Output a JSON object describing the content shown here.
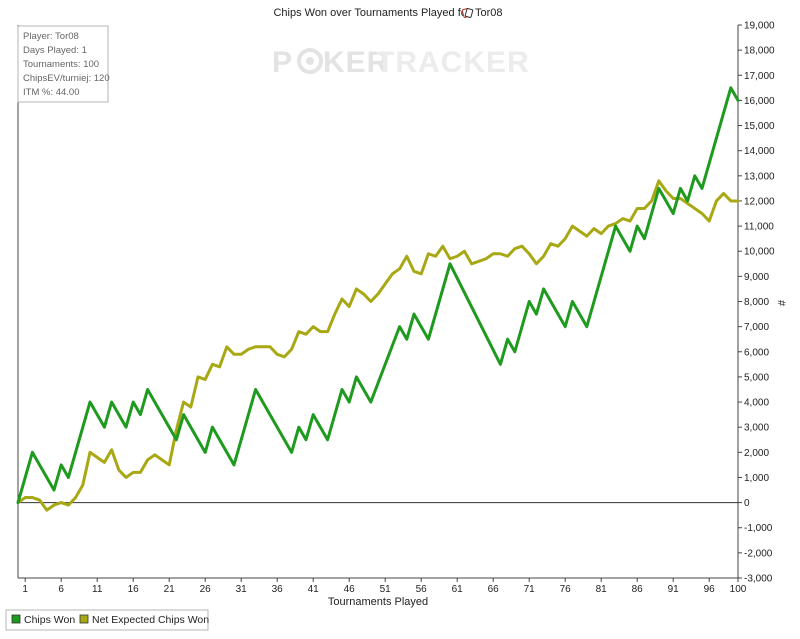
{
  "chart_data": {
    "type": "line",
    "title": "Chips Won over Tournaments Played for",
    "title_player": "Tor08",
    "xlabel": "Tournaments Played",
    "ylabel": "#",
    "xlim": [
      0,
      100
    ],
    "ylim": [
      -3000,
      19000
    ],
    "x_ticks": [
      1,
      6,
      11,
      16,
      21,
      26,
      31,
      36,
      41,
      46,
      51,
      56,
      61,
      66,
      71,
      76,
      81,
      86,
      91,
      96,
      100
    ],
    "y_ticks": [
      -3000,
      -2000,
      -1000,
      0,
      1000,
      2000,
      3000,
      4000,
      5000,
      6000,
      7000,
      8000,
      9000,
      10000,
      11000,
      12000,
      13000,
      14000,
      15000,
      16000,
      17000,
      18000,
      19000
    ],
    "y_tick_labels": [
      "-3,000",
      "-2,000",
      "-1,000",
      "0",
      "1,000",
      "2,000",
      "3,000",
      "4,000",
      "5,000",
      "6,000",
      "7,000",
      "8,000",
      "9,000",
      "10,000",
      "11,000",
      "12,000",
      "13,000",
      "14,000",
      "15,000",
      "16,000",
      "17,000",
      "18,000",
      "19,000"
    ],
    "grid": false,
    "legend": "bottom-left",
    "series": [
      {
        "name": "Chips Won",
        "color": "#1e9a1e",
        "points": [
          [
            0,
            0
          ],
          [
            2,
            2000
          ],
          [
            5,
            500
          ],
          [
            6,
            1500
          ],
          [
            7,
            1000
          ],
          [
            10,
            4000
          ],
          [
            12,
            3000
          ],
          [
            13,
            4000
          ],
          [
            15,
            3000
          ],
          [
            16,
            4000
          ],
          [
            17,
            3500
          ],
          [
            18,
            4500
          ],
          [
            22,
            2500
          ],
          [
            23,
            3500
          ],
          [
            26,
            2000
          ],
          [
            27,
            3000
          ],
          [
            30,
            1500
          ],
          [
            33,
            4500
          ],
          [
            38,
            2000
          ],
          [
            39,
            3000
          ],
          [
            40,
            2500
          ],
          [
            41,
            3500
          ],
          [
            43,
            2500
          ],
          [
            45,
            4500
          ],
          [
            46,
            4000
          ],
          [
            47,
            5000
          ],
          [
            49,
            4000
          ],
          [
            53,
            7000
          ],
          [
            54,
            6500
          ],
          [
            55,
            7500
          ],
          [
            57,
            6500
          ],
          [
            60,
            9500
          ],
          [
            67,
            5500
          ],
          [
            68,
            6500
          ],
          [
            69,
            6000
          ],
          [
            71,
            8000
          ],
          [
            72,
            7500
          ],
          [
            73,
            8500
          ],
          [
            76,
            7000
          ],
          [
            77,
            8000
          ],
          [
            79,
            7000
          ],
          [
            83,
            11000
          ],
          [
            85,
            10000
          ],
          [
            86,
            11000
          ],
          [
            87,
            10500
          ],
          [
            89,
            12500
          ],
          [
            91,
            11500
          ],
          [
            92,
            12500
          ],
          [
            93,
            12000
          ],
          [
            94,
            13000
          ],
          [
            95,
            12500
          ],
          [
            99,
            16500
          ],
          [
            100,
            16000
          ]
        ]
      },
      {
        "name": "Net Expected Chips Won",
        "color": "#a8a814",
        "points": [
          [
            0,
            0
          ],
          [
            1,
            200
          ],
          [
            2,
            200
          ],
          [
            3,
            100
          ],
          [
            4,
            -300
          ],
          [
            5,
            -100
          ],
          [
            6,
            0
          ],
          [
            7,
            -100
          ],
          [
            8,
            200
          ],
          [
            9,
            700
          ],
          [
            10,
            2000
          ],
          [
            11,
            1800
          ],
          [
            12,
            1600
          ],
          [
            13,
            2100
          ],
          [
            14,
            1300
          ],
          [
            15,
            1000
          ],
          [
            16,
            1200
          ],
          [
            17,
            1200
          ],
          [
            18,
            1700
          ],
          [
            19,
            1900
          ],
          [
            20,
            1700
          ],
          [
            21,
            1500
          ],
          [
            22,
            2900
          ],
          [
            23,
            4000
          ],
          [
            24,
            3800
          ],
          [
            25,
            5000
          ],
          [
            26,
            4900
          ],
          [
            27,
            5500
          ],
          [
            28,
            5400
          ],
          [
            29,
            6200
          ],
          [
            30,
            5900
          ],
          [
            31,
            5900
          ],
          [
            32,
            6100
          ],
          [
            33,
            6200
          ],
          [
            34,
            6200
          ],
          [
            35,
            6200
          ],
          [
            36,
            5900
          ],
          [
            37,
            5800
          ],
          [
            38,
            6100
          ],
          [
            39,
            6800
          ],
          [
            40,
            6700
          ],
          [
            41,
            7000
          ],
          [
            42,
            6800
          ],
          [
            43,
            6800
          ],
          [
            44,
            7500
          ],
          [
            45,
            8100
          ],
          [
            46,
            7800
          ],
          [
            47,
            8500
          ],
          [
            48,
            8300
          ],
          [
            49,
            8000
          ],
          [
            50,
            8300
          ],
          [
            51,
            8700
          ],
          [
            52,
            9100
          ],
          [
            53,
            9300
          ],
          [
            54,
            9800
          ],
          [
            55,
            9200
          ],
          [
            56,
            9100
          ],
          [
            57,
            9900
          ],
          [
            58,
            9800
          ],
          [
            59,
            10200
          ],
          [
            60,
            9700
          ],
          [
            61,
            9800
          ],
          [
            62,
            10000
          ],
          [
            63,
            9500
          ],
          [
            64,
            9600
          ],
          [
            65,
            9700
          ],
          [
            66,
            9900
          ],
          [
            67,
            9900
          ],
          [
            68,
            9800
          ],
          [
            69,
            10100
          ],
          [
            70,
            10200
          ],
          [
            71,
            9900
          ],
          [
            72,
            9500
          ],
          [
            73,
            9800
          ],
          [
            74,
            10300
          ],
          [
            75,
            10200
          ],
          [
            76,
            10500
          ],
          [
            77,
            11000
          ],
          [
            78,
            10800
          ],
          [
            79,
            10600
          ],
          [
            80,
            10900
          ],
          [
            81,
            10700
          ],
          [
            82,
            11000
          ],
          [
            83,
            11100
          ],
          [
            84,
            11300
          ],
          [
            85,
            11200
          ],
          [
            86,
            11700
          ],
          [
            87,
            11700
          ],
          [
            88,
            12000
          ],
          [
            89,
            12800
          ],
          [
            90,
            12400
          ],
          [
            91,
            12100
          ],
          [
            92,
            12100
          ],
          [
            93,
            11900
          ],
          [
            94,
            11700
          ],
          [
            95,
            11500
          ],
          [
            96,
            11200
          ],
          [
            97,
            12000
          ],
          [
            98,
            12300
          ],
          [
            99,
            12000
          ],
          [
            100,
            12000
          ]
        ]
      }
    ]
  },
  "info_box": {
    "player": "Player: Tor08",
    "days_played": "Days Played: 1",
    "tournaments": "Tournaments: 100",
    "chips_ev": "ChipsEV/turniej: 120",
    "itm": "ITM %: 44.00"
  },
  "watermark": {
    "text_left": "P",
    "text_mid": "KER",
    "text_right": "TRACKER"
  },
  "colors": {
    "chips_won": "#1e9a1e",
    "net_expected": "#a8a814",
    "axis": "#444444",
    "zero_line": "#333333"
  },
  "icons": {
    "title_icon": "poker-cards-icon"
  }
}
